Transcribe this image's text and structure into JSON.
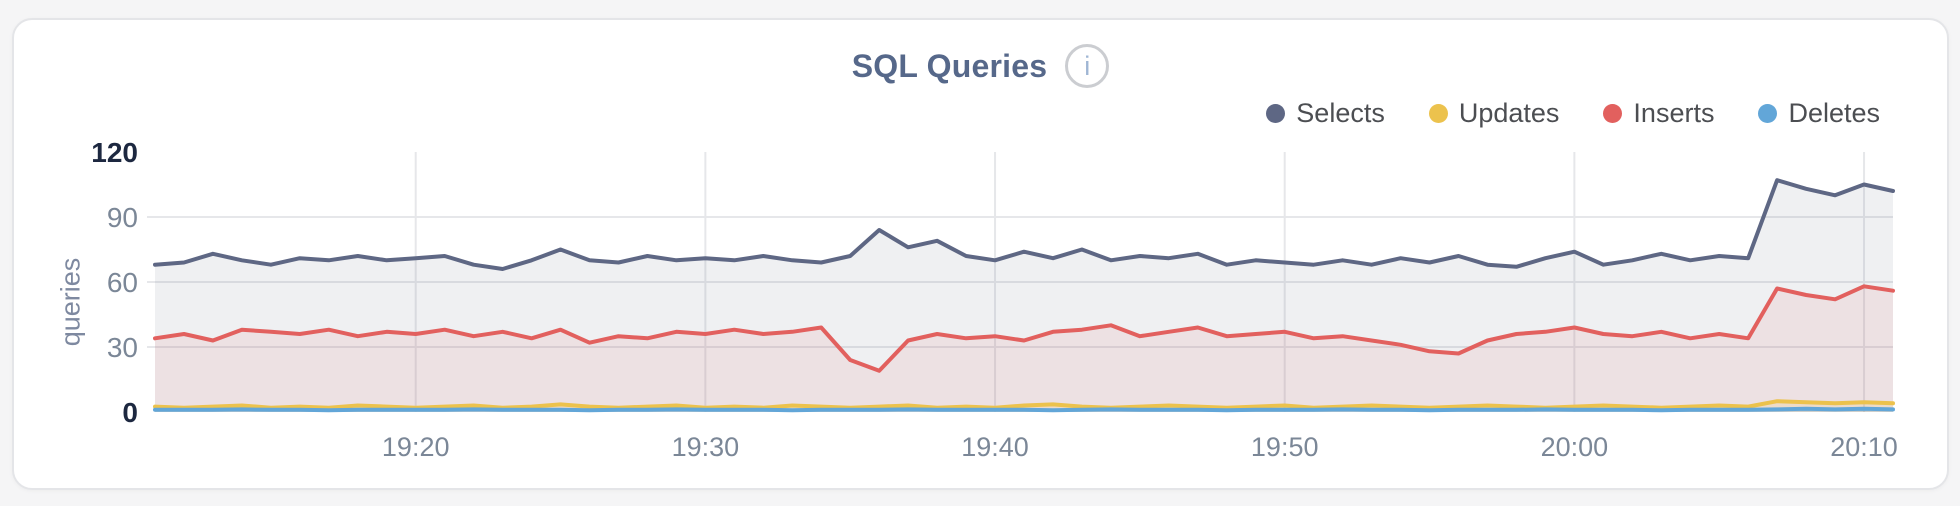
{
  "page": {
    "background": "#f5f5f6"
  },
  "card": {
    "background": "#ffffff",
    "border_color": "#e4e5e8"
  },
  "header": {
    "title": "SQL Queries",
    "info_icon": "i"
  },
  "legend": [
    {
      "label": "Selects",
      "color": "#5e6784"
    },
    {
      "label": "Updates",
      "color": "#ecc24d"
    },
    {
      "label": "Inserts",
      "color": "#e2605e"
    },
    {
      "label": "Deletes",
      "color": "#62a6d8"
    }
  ],
  "axis_style": {
    "tick_color": "#7b8797",
    "tick_color_strong": "#1d2840",
    "grid_color": "#e6e7ea",
    "ylabel_color": "#7e89a0"
  },
  "chart_data": {
    "type": "area",
    "title": "SQL Queries",
    "ylabel": "queries",
    "ylim": [
      0,
      120
    ],
    "y_ticks": [
      0,
      30,
      60,
      90,
      120
    ],
    "grid_y": [
      30,
      60,
      90
    ],
    "grid": true,
    "legend_position": "top-right",
    "x_start_time": "19:11",
    "x_end_time": "20:11",
    "x_minutes_span": 60,
    "sample_interval_minutes": 1,
    "x_ticks": [
      {
        "minute": 9,
        "label": "19:20"
      },
      {
        "minute": 19,
        "label": "19:30"
      },
      {
        "minute": 29,
        "label": "19:40"
      },
      {
        "minute": 39,
        "label": "19:50"
      },
      {
        "minute": 49,
        "label": "20:00"
      },
      {
        "minute": 59,
        "label": "20:10"
      }
    ],
    "series": [
      {
        "name": "Selects",
        "color": "#5e6784",
        "fill_opacity": 0.1,
        "values": [
          68,
          69,
          73,
          70,
          68,
          71,
          70,
          72,
          70,
          71,
          72,
          68,
          66,
          70,
          75,
          70,
          69,
          72,
          70,
          71,
          70,
          72,
          70,
          69,
          72,
          84,
          76,
          79,
          72,
          70,
          74,
          71,
          75,
          70,
          72,
          71,
          73,
          68,
          70,
          69,
          68,
          70,
          68,
          71,
          69,
          72,
          68,
          67,
          71,
          74,
          68,
          70,
          73,
          70,
          72,
          71,
          107,
          103,
          100,
          105,
          102
        ]
      },
      {
        "name": "Inserts",
        "color": "#e2605e",
        "fill_opacity": 0.1,
        "values": [
          34,
          36,
          33,
          38,
          37,
          36,
          38,
          35,
          37,
          36,
          38,
          35,
          37,
          34,
          38,
          32,
          35,
          34,
          37,
          36,
          38,
          36,
          37,
          39,
          24,
          19,
          33,
          36,
          34,
          35,
          33,
          37,
          38,
          40,
          35,
          37,
          39,
          35,
          36,
          37,
          34,
          35,
          33,
          31,
          28,
          27,
          33,
          36,
          37,
          39,
          36,
          35,
          37,
          34,
          36,
          34,
          57,
          54,
          52,
          58,
          56
        ]
      },
      {
        "name": "Updates",
        "color": "#ecc24d",
        "fill_opacity": 0.18,
        "values": [
          2.5,
          2,
          2.5,
          3,
          2,
          2.5,
          2,
          3,
          2.5,
          2,
          2.5,
          3,
          2,
          2.5,
          3.5,
          2.5,
          2,
          2.5,
          3,
          2,
          2.5,
          2,
          3,
          2.5,
          2,
          2.5,
          3,
          2,
          2.5,
          2,
          3,
          3.5,
          2.5,
          2,
          2.5,
          3,
          2.5,
          2,
          2.5,
          3,
          2,
          2.5,
          3,
          2.5,
          2,
          2.5,
          3,
          2.5,
          2,
          2.5,
          3,
          2.5,
          2,
          2.5,
          3,
          2.5,
          5,
          4.5,
          4,
          4.5,
          4
        ]
      },
      {
        "name": "Deletes",
        "color": "#62a6d8",
        "fill_opacity": 0.22,
        "values": [
          1,
          1,
          1,
          1.2,
          1,
          1,
          0.8,
          1,
          1,
          1,
          1,
          1.2,
          1,
          1,
          1,
          0.8,
          1,
          1,
          1.2,
          1,
          1,
          1,
          0.8,
          1,
          1,
          1,
          1.2,
          1,
          1,
          1,
          1,
          0.8,
          1,
          1.2,
          1,
          1,
          1,
          0.8,
          1,
          1,
          1,
          1.2,
          1,
          1,
          0.8,
          1,
          1,
          1,
          1.2,
          1,
          1,
          1,
          0.8,
          1,
          1,
          1,
          1.2,
          1.5,
          1.2,
          1.5,
          1.2
        ]
      }
    ]
  }
}
